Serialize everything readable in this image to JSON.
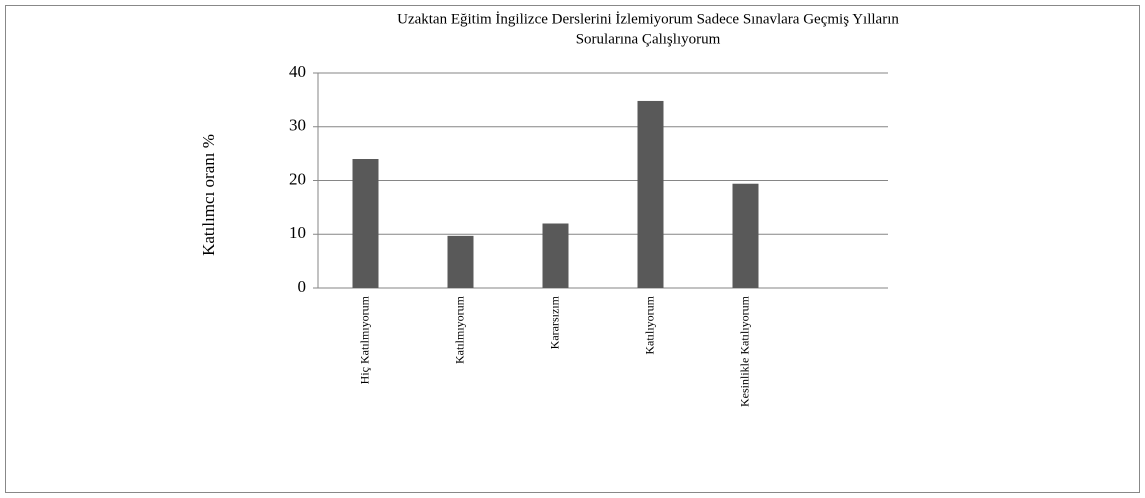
{
  "chart_data": {
    "type": "bar",
    "title": [
      "Uzaktan Eğitim İngilizce Derslerini İzlemiyorum Sadece Sınavlara  Geçmiş Yılların",
      "Sorularına Çalışlıyorum"
    ],
    "y_label": "Katılımcı oranı %",
    "categories": [
      "Hiç Katılmıyorum",
      "Katılmıyorum",
      "Kararsızım",
      "Katılıyorum",
      "Kesinlikle Katılıyorum",
      null
    ],
    "values": [
      24,
      9.7,
      12,
      34.8,
      19.4,
      null
    ],
    "color": "#595959",
    "ylim": [
      0,
      40
    ],
    "yticks": [
      0,
      10,
      20,
      30,
      40
    ],
    "grid": true
  }
}
